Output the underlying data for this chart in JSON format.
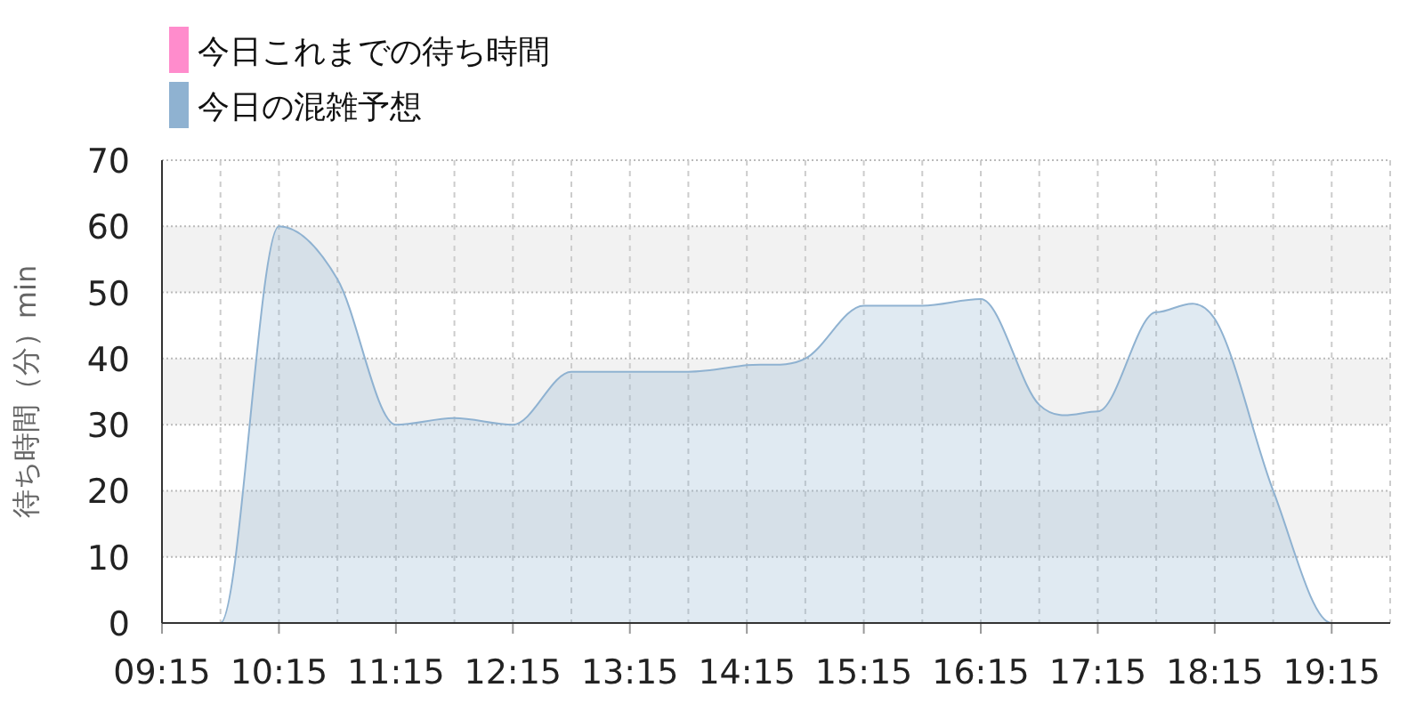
{
  "chart_data": {
    "type": "area",
    "ylabel": "待ち時間（分）min",
    "legend": "top left",
    "grid": true,
    "marker": "none",
    "line_style": "solid",
    "x": [
      9.25,
      9.75,
      10.25,
      10.75,
      11.25,
      11.75,
      12.25,
      12.75,
      13.25,
      13.75,
      14.25,
      14.75,
      15.25,
      15.75,
      16.25,
      16.75,
      17.25,
      17.75,
      18.25,
      18.75,
      19.25,
      19.75
    ],
    "series": [
      {
        "name": "今日これまでの待ち時間",
        "color": "#ff8ccc",
        "values": [
          null,
          null,
          null,
          null,
          null,
          null,
          null,
          null,
          null,
          null,
          null,
          null,
          null,
          null,
          null,
          null,
          null,
          null,
          null,
          null,
          null,
          null
        ]
      },
      {
        "name": "今日の混雑予想",
        "color": "#8fb2d1",
        "values": [
          0,
          0,
          60,
          52,
          30,
          31,
          30,
          38,
          38,
          38,
          39,
          40,
          48,
          48,
          49,
          33,
          32,
          47,
          46,
          20,
          0,
          0
        ]
      }
    ],
    "xlim": [
      9.25,
      19.75
    ],
    "xticks": [
      {
        "value": 9.25,
        "label": "09:15"
      },
      {
        "value": 9.75,
        "label": null
      },
      {
        "value": 10.25,
        "label": "10:15"
      },
      {
        "value": 10.75,
        "label": null
      },
      {
        "value": 11.25,
        "label": "11:15"
      },
      {
        "value": 11.75,
        "label": null
      },
      {
        "value": 12.25,
        "label": "12:15"
      },
      {
        "value": 12.75,
        "label": null
      },
      {
        "value": 13.25,
        "label": "13:15"
      },
      {
        "value": 13.75,
        "label": null
      },
      {
        "value": 14.25,
        "label": "14:15"
      },
      {
        "value": 14.75,
        "label": null
      },
      {
        "value": 15.25,
        "label": "15:15"
      },
      {
        "value": 15.75,
        "label": null
      },
      {
        "value": 16.25,
        "label": "16:15"
      },
      {
        "value": 16.75,
        "label": null
      },
      {
        "value": 17.25,
        "label": "17:15"
      },
      {
        "value": 17.75,
        "label": null
      },
      {
        "value": 18.25,
        "label": "18:15"
      },
      {
        "value": 18.75,
        "label": null
      },
      {
        "value": 19.25,
        "label": "19:15"
      },
      {
        "value": 19.75,
        "label": null
      }
    ],
    "ylim": [
      0,
      70
    ],
    "yticks": [
      0,
      10,
      20,
      30,
      40,
      50,
      60,
      70
    ],
    "bands": [
      {
        "axis": "y",
        "from": 10,
        "to": 20,
        "color": "#f2f2f2"
      },
      {
        "axis": "y",
        "from": 30,
        "to": 40,
        "color": "#f2f2f2"
      },
      {
        "axis": "y",
        "from": 50,
        "to": 60,
        "color": "#f2f2f2"
      }
    ]
  }
}
